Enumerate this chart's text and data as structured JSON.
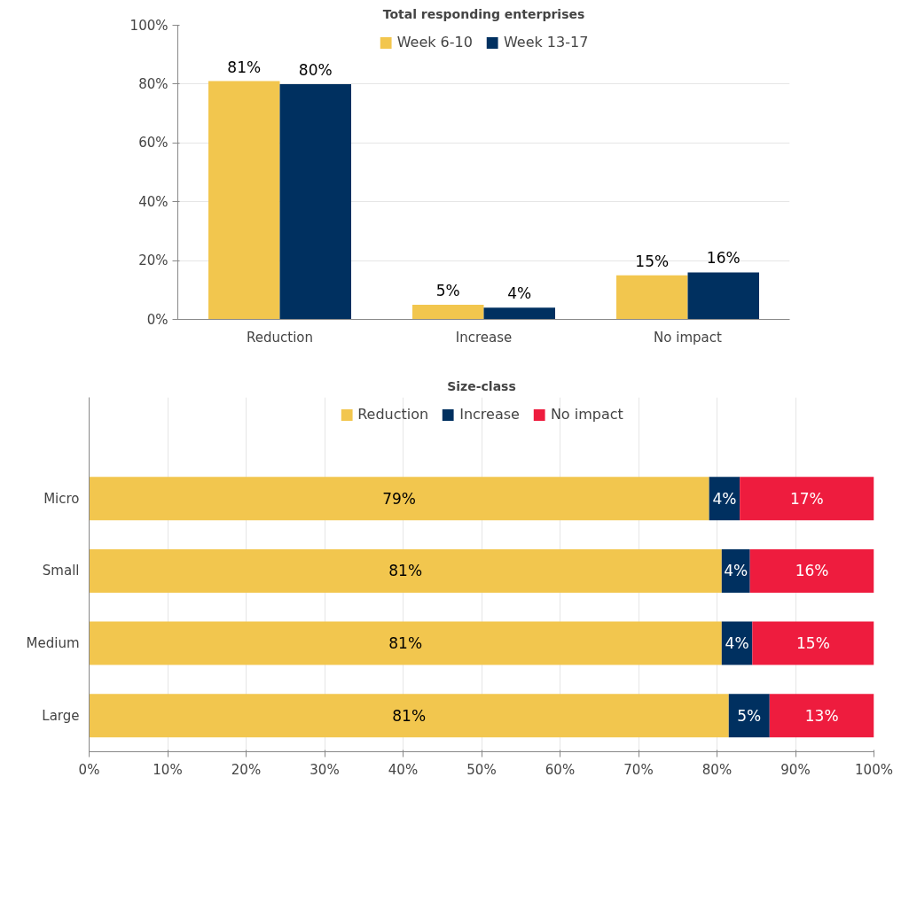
{
  "chart_data": [
    {
      "type": "bar",
      "title": "Total responding enterprises",
      "categories": [
        "Reduction",
        "Increase",
        "No impact"
      ],
      "series": [
        {
          "name": "Week 6-10",
          "color": "#f2c64e",
          "values": [
            81,
            5,
            15
          ],
          "value_labels": [
            "81%",
            "5%",
            "15%"
          ]
        },
        {
          "name": "Week 13-17",
          "color": "#003060",
          "values": [
            80,
            4,
            16
          ],
          "value_labels": [
            "80%",
            "4%",
            "16%"
          ]
        }
      ],
      "ylim": [
        0,
        100
      ],
      "yticks": [
        {
          "value": 0,
          "label": "0%"
        },
        {
          "value": 20,
          "label": "20%"
        },
        {
          "value": 40,
          "label": "40%"
        },
        {
          "value": 60,
          "label": "60%"
        },
        {
          "value": 80,
          "label": "80%"
        },
        {
          "value": 100,
          "label": "100%"
        }
      ],
      "grid": "y",
      "legend": "top"
    },
    {
      "type": "bar",
      "title": "Size-class",
      "orientation": "horizontal",
      "stacked": true,
      "categories": [
        "Micro",
        "Small",
        "Medium",
        "Large"
      ],
      "series": [
        {
          "name": "Reduction",
          "color": "#f2c64e",
          "values": [
            79.0,
            80.6,
            80.6,
            81.5
          ],
          "value_labels": [
            "79%",
            "81%",
            "81%",
            "81%"
          ]
        },
        {
          "name": "Increase",
          "color": "#003060",
          "values": [
            3.9,
            3.6,
            3.9,
            5.2
          ],
          "value_labels": [
            "4%",
            "4%",
            "4%",
            "5%"
          ]
        },
        {
          "name": "No impact",
          "color": "#ee1c3e",
          "values": [
            17.1,
            15.8,
            15.5,
            13.3
          ],
          "value_labels": [
            "17%",
            "16%",
            "15%",
            "13%"
          ]
        }
      ],
      "xlim": [
        0,
        100
      ],
      "xticks": [
        {
          "value": 0,
          "label": "0%"
        },
        {
          "value": 10,
          "label": "10%"
        },
        {
          "value": 20,
          "label": "20%"
        },
        {
          "value": 30,
          "label": "30%"
        },
        {
          "value": 40,
          "label": "40%"
        },
        {
          "value": 50,
          "label": "50%"
        },
        {
          "value": 60,
          "label": "60%"
        },
        {
          "value": 70,
          "label": "70%"
        },
        {
          "value": 80,
          "label": "80%"
        },
        {
          "value": 90,
          "label": "90%"
        },
        {
          "value": 100,
          "label": "100%"
        }
      ],
      "grid": "x",
      "legend": "top"
    }
  ]
}
